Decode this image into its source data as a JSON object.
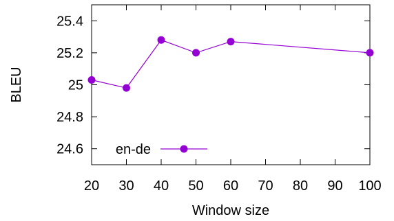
{
  "chart_data": {
    "type": "line",
    "xlabel": "Window size",
    "ylabel": "BLEU",
    "xlim": [
      20,
      100
    ],
    "ylim": [
      24.5,
      25.5
    ],
    "xticks": [
      20,
      30,
      40,
      50,
      60,
      70,
      80,
      90,
      100
    ],
    "yticks": [
      24.6,
      24.8,
      25,
      25.2,
      25.4
    ],
    "ytick_labels": [
      "24.6",
      "24.8",
      "25",
      "25.2",
      "25.4"
    ],
    "grid": false,
    "legend_position": "bottom-left",
    "series": [
      {
        "name": "en-de",
        "color": "#9400d3",
        "marker": "circle",
        "x": [
          20,
          30,
          40,
          50,
          60,
          100
        ],
        "y": [
          25.03,
          24.98,
          25.28,
          25.2,
          25.27,
          25.2
        ]
      }
    ]
  }
}
